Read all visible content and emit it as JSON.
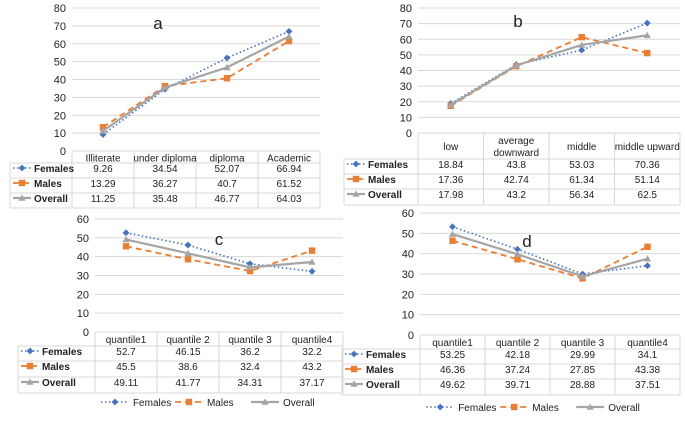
{
  "colors": {
    "Females": "#4472C4",
    "Males": "#ED7D31",
    "Overall": "#A5A5A5",
    "grid": "#D9D9D9",
    "text": "#222222"
  },
  "chart_data": [
    {
      "type": "line",
      "title": "a",
      "categories": [
        "Illiterate",
        "under diploma",
        "diploma",
        "Academic"
      ],
      "ylim": [
        0,
        80
      ],
      "yticks": [
        0,
        10,
        20,
        30,
        40,
        50,
        60,
        70,
        80
      ],
      "legend": "data table",
      "series": [
        {
          "name": "Females",
          "values": [
            9.26,
            34.54,
            52.07,
            66.94
          ],
          "labels": [
            "9.26",
            "34.54",
            "52.07",
            "66.94"
          ]
        },
        {
          "name": "Males",
          "values": [
            13.29,
            36.27,
            40.7,
            61.52
          ],
          "labels": [
            "13.29",
            "36.27",
            "40.7",
            "61.52"
          ]
        },
        {
          "name": "Overall",
          "values": [
            11.25,
            35.48,
            46.77,
            64.03
          ],
          "labels": [
            "11.25",
            "35.48",
            "46.77",
            "64.03"
          ]
        }
      ]
    },
    {
      "type": "line",
      "title": "b",
      "categories": [
        "low",
        "average downward",
        "middle",
        "middle upward"
      ],
      "ylim": [
        0,
        80
      ],
      "yticks": [
        0,
        10,
        20,
        30,
        40,
        50,
        60,
        70,
        80
      ],
      "legend": "data table",
      "series": [
        {
          "name": "Females",
          "values": [
            18.84,
            43.8,
            53.03,
            70.36
          ],
          "labels": [
            "18.84",
            "43.8",
            "53.03",
            "70.36"
          ]
        },
        {
          "name": "Males",
          "values": [
            17.36,
            42.74,
            61.34,
            51.14
          ],
          "labels": [
            "17.36",
            "42.74",
            "61.34",
            "51.14"
          ]
        },
        {
          "name": "Overall",
          "values": [
            17.98,
            43.2,
            56.34,
            62.5
          ],
          "labels": [
            "17.98",
            "43.2",
            "56.34",
            "62.5"
          ]
        }
      ]
    },
    {
      "type": "line",
      "title": "c",
      "categories": [
        "quantile1",
        "quantile 2",
        "quantile 3",
        "quantile4"
      ],
      "ylim": [
        0,
        60
      ],
      "yticks": [
        0,
        10,
        20,
        30,
        40,
        50,
        60
      ],
      "legend": "bottom",
      "series": [
        {
          "name": "Females",
          "values": [
            52.7,
            46.15,
            36.2,
            32.2
          ],
          "labels": [
            "52.7",
            "46.15",
            "36.2",
            "32.2"
          ]
        },
        {
          "name": "Males",
          "values": [
            45.5,
            38.6,
            32.4,
            43.2
          ],
          "labels": [
            "45.5",
            "38.6",
            "32.4",
            "43.2"
          ]
        },
        {
          "name": "Overall",
          "values": [
            49.11,
            41.77,
            34.31,
            37.17
          ],
          "labels": [
            "49.11",
            "41.77",
            "34.31",
            "37.17"
          ]
        }
      ]
    },
    {
      "type": "line",
      "title": "d",
      "categories": [
        "quantile1",
        "quantile 2",
        "quantile 3",
        "quantile4"
      ],
      "ylim": [
        0,
        60
      ],
      "yticks": [
        0,
        10,
        20,
        30,
        40,
        50,
        60
      ],
      "legend": "bottom",
      "series": [
        {
          "name": "Females",
          "values": [
            53.25,
            42.18,
            29.99,
            34.1
          ],
          "labels": [
            "53.25",
            "42.18",
            "29.99",
            "34.1"
          ]
        },
        {
          "name": "Males",
          "values": [
            46.36,
            37.24,
            27.85,
            43.38
          ],
          "labels": [
            "46.36",
            "37.24",
            "27.85",
            "43.38"
          ]
        },
        {
          "name": "Overall",
          "values": [
            49.62,
            39.71,
            28.88,
            37.51
          ],
          "labels": [
            "49.62",
            "39.71",
            "28.88",
            "37.51"
          ]
        }
      ]
    }
  ]
}
